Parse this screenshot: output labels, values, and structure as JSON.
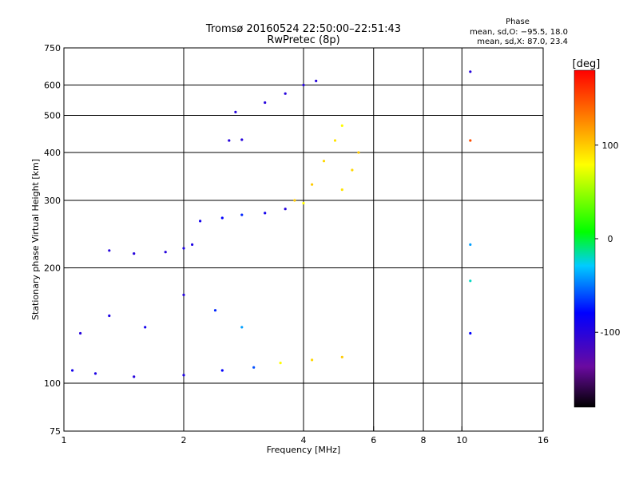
{
  "chart_data": {
    "type": "scatter",
    "title": "Tromsø 20160524 22:50:00–22:51:43",
    "subtitle": "RwPretec (8p)",
    "xlabel": "Frequency [MHz]",
    "ylabel": "Stationary phase Virtual Height [km]",
    "x_scale": "log",
    "y_scale": "log",
    "xlim": [
      1,
      16
    ],
    "ylim": [
      75,
      750
    ],
    "x_ticks": [
      1,
      2,
      4,
      6,
      8,
      10,
      16
    ],
    "y_ticks": [
      75,
      100,
      200,
      300,
      400,
      500,
      600,
      750
    ],
    "grid": true,
    "phase_stats": {
      "header": "Phase",
      "line1": "mean, sd,O: −95.5, 18.0",
      "line2": "mean, sd,X:  87.0, 23.4"
    },
    "colorbar": {
      "label": "[deg]",
      "range": [
        -180,
        180
      ],
      "ticks": [
        100,
        0,
        -100
      ],
      "gradient": [
        "#000000",
        "#6a0aa0",
        "#0000ff",
        "#00ccff",
        "#00ff00",
        "#ffff00",
        "#ff8800",
        "#ff0000"
      ]
    },
    "traces": [
      {
        "name": "",
        "x": [
          1.05,
          1.2,
          1.5,
          2.0,
          2.5,
          3.0,
          3.5,
          4.2,
          5.0
        ],
        "y": [
          108,
          106,
          104,
          105,
          108,
          110,
          113,
          115,
          117
        ],
        "phase": [
          -90,
          -95,
          -100,
          -95,
          -80,
          -60,
          80,
          95,
          100
        ]
      },
      {
        "name": "",
        "x": [
          1.1,
          1.3,
          1.6,
          2.0,
          2.4,
          2.8
        ],
        "y": [
          135,
          150,
          140,
          170,
          155,
          140
        ],
        "phase": [
          -100,
          -95,
          -90,
          -100,
          -70,
          -40
        ]
      },
      {
        "name": "",
        "x": [
          1.3,
          1.5,
          1.8,
          2.0,
          2.1
        ],
        "y": [
          222,
          218,
          220,
          225,
          230
        ],
        "phase": [
          -100,
          -100,
          -100,
          -95,
          -95
        ]
      },
      {
        "name": "",
        "x": [
          2.2,
          2.5,
          2.8,
          3.2,
          3.6,
          4.0
        ],
        "y": [
          265,
          270,
          275,
          278,
          285,
          295
        ],
        "phase": [
          -90,
          -80,
          -70,
          -90,
          -100,
          80
        ]
      },
      {
        "name": "",
        "x": [
          2.6,
          2.8
        ],
        "y": [
          430,
          432
        ],
        "phase": [
          -100,
          -100
        ]
      },
      {
        "name": "",
        "x": [
          2.7,
          3.2,
          3.6,
          4.0,
          4.3
        ],
        "y": [
          510,
          540,
          570,
          600,
          615
        ],
        "phase": [
          -100,
          -100,
          -100,
          -100,
          -100
        ]
      },
      {
        "name": "",
        "x": [
          3.8,
          4.2,
          4.5,
          4.8,
          5.0
        ],
        "y": [
          300,
          330,
          380,
          430,
          470
        ],
        "phase": [
          100,
          100,
          95,
          90,
          80
        ]
      },
      {
        "name": "",
        "x": [
          5.0,
          5.3,
          5.5
        ],
        "y": [
          320,
          360,
          400
        ],
        "phase": [
          90,
          95,
          100
        ]
      },
      {
        "name": "",
        "x": [
          10.5,
          10.5,
          10.5,
          10.5,
          10.5
        ],
        "y": [
          650,
          430,
          230,
          185,
          135
        ],
        "phase": [
          -100,
          150,
          -40,
          -20,
          -80
        ]
      }
    ]
  }
}
